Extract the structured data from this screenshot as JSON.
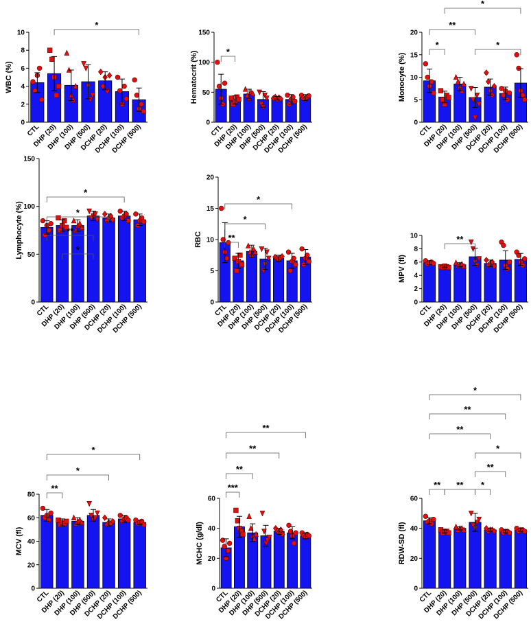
{
  "chart_data": [
    {
      "type": "bar",
      "y_label": "WBC (%)",
      "categories": [
        "CTL",
        "DHP (20)",
        "DHP (100)",
        "DHP (500)",
        "DCHP (20)",
        "DCHP (100)",
        "DCHP (500)"
      ],
      "color": "#1414f0",
      "point_color": "#e01010",
      "values": [
        4.4,
        5.4,
        4.1,
        4.5,
        4.6,
        3.4,
        2.5
      ],
      "errors": [
        1.1,
        1.9,
        1.7,
        1.9,
        1.0,
        1.4,
        1.3
      ],
      "points": [
        [
          4.5,
          3.5,
          5.2,
          6,
          2.5
        ],
        [
          8,
          7,
          5,
          3,
          4
        ],
        [
          7.7,
          5.8,
          3,
          2.5,
          4
        ],
        [
          6.5,
          6,
          4,
          2.5,
          3
        ],
        [
          5.6,
          4,
          5,
          3.5,
          5.2
        ],
        [
          5,
          3.5,
          2,
          4,
          2.6
        ],
        [
          4.7,
          3,
          1.5,
          2,
          1.2
        ]
      ],
      "ylim": [
        0,
        10
      ],
      "yticks": [
        0,
        2,
        4,
        6,
        8,
        10
      ],
      "annotations": [
        {
          "label": "*",
          "pair": [
            1,
            6
          ]
        }
      ]
    },
    {
      "type": "bar",
      "y_label": "Hematocrit (%)",
      "categories": [
        "CTL",
        "DHP (20)",
        "DHP (100)",
        "DHP (500)",
        "DCHP (20)",
        "DCHP (100)",
        "DCHP (500)"
      ],
      "color": "#1414f0",
      "point_color": "#e01010",
      "values": [
        55,
        37,
        47,
        38,
        40,
        38,
        41
      ],
      "errors": [
        25,
        7,
        8,
        13,
        3,
        8,
        5
      ],
      "points": [
        [
          100,
          60,
          40,
          30,
          65
        ],
        [
          40,
          30,
          35,
          42,
          38
        ],
        [
          55,
          45,
          40,
          50,
          48
        ],
        [
          50,
          30,
          25,
          45,
          40
        ],
        [
          40,
          42,
          38,
          41,
          39
        ],
        [
          45,
          30,
          38,
          42,
          35
        ],
        [
          45,
          40,
          38,
          42,
          44
        ]
      ],
      "ylim": [
        0,
        150
      ],
      "yticks": [
        0,
        50,
        100,
        150
      ],
      "annotations": [
        {
          "label": "*",
          "pair": [
            0,
            1
          ]
        }
      ]
    },
    {
      "type": "bar",
      "y_label": "Monocyte (%)",
      "categories": [
        "CTL",
        "DHP (20)",
        "DHP (100)",
        "DHP (500)",
        "DCHP (20)",
        "DCHP (100)",
        "DCHP (500)"
      ],
      "color": "#1414f0",
      "point_color": "#e01010",
      "values": [
        9.2,
        5.6,
        8.5,
        5.5,
        7.8,
        6.4,
        8.7
      ],
      "errors": [
        2.6,
        1.3,
        1.5,
        2.2,
        1.8,
        1.4,
        3.2
      ],
      "points": [
        [
          13,
          10,
          8,
          9,
          6.5
        ],
        [
          7,
          5,
          4,
          6,
          5.5
        ],
        [
          10,
          9,
          8,
          7,
          8.5
        ],
        [
          7.5,
          5,
          1,
          6,
          4
        ],
        [
          11,
          9,
          7,
          6,
          8
        ],
        [
          7.5,
          6,
          7,
          5,
          6.5
        ],
        [
          15,
          12,
          7,
          6,
          5
        ]
      ],
      "ylim": [
        0,
        20
      ],
      "yticks": [
        0,
        5,
        10,
        15,
        20
      ],
      "annotations": [
        {
          "label": "*",
          "pair": [
            0,
            1
          ]
        },
        {
          "label": "**",
          "pair": [
            0,
            3
          ]
        },
        {
          "label": "*",
          "pair": [
            1,
            6
          ]
        },
        {
          "label": "*",
          "pair": [
            3,
            6
          ]
        }
      ]
    },
    {
      "type": "bar",
      "y_label": "Lymphocyte (%)",
      "categories": [
        "CTL",
        "DHP (20)",
        "DHP (100)",
        "DHP (500)",
        "DCHP (20)",
        "DCHP (100)",
        "DCHP (500)"
      ],
      "color": "#1414f0",
      "point_color": "#e01010",
      "values": [
        78,
        80,
        80,
        90,
        88,
        90,
        86
      ],
      "errors": [
        7,
        6,
        6,
        5,
        4,
        5,
        6
      ],
      "points": [
        [
          85,
          70,
          80,
          75,
          82
        ],
        [
          88,
          75,
          80,
          85,
          78
        ],
        [
          85,
          75,
          80,
          82,
          78
        ],
        [
          95,
          88,
          90,
          92,
          86
        ],
        [
          92,
          85,
          88,
          90,
          86
        ],
        [
          95,
          88,
          90,
          92,
          85
        ],
        [
          92,
          80,
          85,
          88,
          84
        ]
      ],
      "ylim": [
        0,
        150
      ],
      "yticks": [
        0,
        50,
        100,
        150
      ],
      "annotations": [
        {
          "label": "*",
          "pair": [
            0,
            5
          ]
        },
        {
          "label": "*",
          "pair": [
            0,
            4
          ]
        },
        {
          "label": "**",
          "pair": [
            0,
            3
          ]
        },
        {
          "label": "*",
          "pair": [
            1,
            3
          ]
        }
      ]
    },
    {
      "type": "bar",
      "y_label": "RBC",
      "categories": [
        "CTL",
        "DHP (20)",
        "DHP (100)",
        "DHP (500)",
        "DCHP (20)",
        "DCHP (100)",
        "DCHP (500)"
      ],
      "color": "#1414f0",
      "point_color": "#e01010",
      "values": [
        9.5,
        6.6,
        8.1,
        6.9,
        7.0,
        6.6,
        7.2
      ],
      "errors": [
        3.2,
        1.2,
        1.0,
        1.7,
        0.5,
        1.2,
        1.2
      ],
      "points": [
        [
          15,
          10,
          8,
          7,
          9.5
        ],
        [
          7,
          5,
          6.5,
          7.5,
          6
        ],
        [
          9,
          8,
          7.5,
          8.5,
          8
        ],
        [
          8.5,
          5,
          6,
          8,
          7
        ],
        [
          7.2,
          7,
          6.8,
          7.1,
          7.3
        ],
        [
          8,
          5,
          6.5,
          7,
          6
        ],
        [
          8.5,
          6,
          7,
          7.5,
          6.5
        ]
      ],
      "ylim": [
        0,
        20
      ],
      "yticks": [
        0,
        5,
        10,
        15,
        20
      ],
      "annotations": [
        {
          "label": "*",
          "pair": [
            0,
            5
          ]
        },
        {
          "label": "*",
          "pair": [
            0,
            3
          ]
        },
        {
          "label": "**",
          "pair": [
            0,
            1
          ]
        }
      ]
    },
    {
      "type": "bar",
      "y_label": "MPV (fl)",
      "categories": [
        "CTL",
        "DHP (20)",
        "DHP (100)",
        "DHP (500)",
        "DCHP (20)",
        "DCHP (100)",
        "DCHP (500)"
      ],
      "color": "#1414f0",
      "point_color": "#e01010",
      "values": [
        5.9,
        5.3,
        5.6,
        6.8,
        5.8,
        6.3,
        6.4
      ],
      "errors": [
        0.3,
        0.1,
        0.3,
        1.3,
        0.5,
        1.4,
        0.9
      ],
      "points": [
        [
          6.2,
          5.7,
          5.9,
          6,
          5.8
        ],
        [
          5.3,
          5.2,
          5.4,
          5.3,
          5.2
        ],
        [
          5.9,
          5.5,
          5.6,
          5.7,
          5.4
        ],
        [
          9,
          8,
          6,
          5.5,
          6.5
        ],
        [
          6.3,
          5.5,
          5.8,
          6,
          5.4
        ],
        [
          9,
          8.5,
          5.5,
          5,
          6
        ],
        [
          7.5,
          7,
          6,
          5.5,
          6.5
        ]
      ],
      "ylim": [
        0,
        10
      ],
      "yticks": [
        0,
        2,
        4,
        6,
        8,
        10
      ],
      "annotations": [
        {
          "label": "**",
          "pair": [
            1,
            3
          ]
        }
      ]
    },
    {
      "type": "bar",
      "y_label": "MCV (fl)",
      "categories": [
        "CTL",
        "DHP (20)",
        "DHP (100)",
        "DHP (500)",
        "DCHP (20)",
        "DCHP (100)",
        "DCHP (500)"
      ],
      "color": "#1414f0",
      "point_color": "#e01010",
      "values": [
        62,
        56,
        57,
        62,
        56,
        59,
        56
      ],
      "errors": [
        5,
        3,
        3,
        5,
        3,
        3,
        2
      ],
      "points": [
        [
          68,
          60,
          62,
          58,
          64
        ],
        [
          58,
          54,
          56,
          55,
          57
        ],
        [
          60,
          55,
          57,
          58,
          56
        ],
        [
          72,
          62,
          58,
          60,
          64
        ],
        [
          60,
          54,
          56,
          55,
          57
        ],
        [
          62,
          57,
          59,
          60,
          58
        ],
        [
          58,
          55,
          56,
          57,
          54
        ]
      ],
      "ylim": [
        0,
        80
      ],
      "yticks": [
        0,
        20,
        40,
        60,
        80
      ],
      "annotations": [
        {
          "label": "*",
          "pair": [
            0,
            6
          ]
        },
        {
          "label": "*",
          "pair": [
            0,
            4
          ]
        },
        {
          "label": "**",
          "pair": [
            0,
            1
          ]
        }
      ]
    },
    {
      "type": "bar",
      "y_label": "MCHC (g/dl)",
      "categories": [
        "CTL",
        "DHP (20)",
        "DHP (100)",
        "DHP (500)",
        "DCHP (20)",
        "DCHP (100)",
        "DCHP (500)"
      ],
      "color": "#1414f0",
      "point_color": "#e01010",
      "values": [
        27,
        41,
        37,
        35,
        38,
        37,
        35
      ],
      "errors": [
        6,
        7,
        6,
        7,
        2,
        4,
        2
      ],
      "points": [
        [
          32,
          28,
          20,
          25,
          30
        ],
        [
          52,
          45,
          40,
          38,
          36
        ],
        [
          48,
          40,
          35,
          33,
          36
        ],
        [
          50,
          38,
          30,
          32,
          34
        ],
        [
          40,
          38,
          37,
          39,
          36
        ],
        [
          42,
          38,
          35,
          30,
          37
        ],
        [
          37,
          35,
          34,
          36,
          35
        ]
      ],
      "ylim": [
        0,
        60
      ],
      "yticks": [
        0,
        20,
        40,
        60
      ],
      "annotations": [
        {
          "label": "**",
          "pair": [
            0,
            6
          ]
        },
        {
          "label": "**",
          "pair": [
            0,
            4
          ]
        },
        {
          "label": "**",
          "pair": [
            0,
            2
          ]
        },
        {
          "label": "***",
          "pair": [
            0,
            1
          ]
        }
      ]
    },
    {
      "type": "bar",
      "y_label": "RDW-SD (fl)",
      "categories": [
        "CTL",
        "DHP (20)",
        "DHP (100)",
        "DHP (500)",
        "DCHP (20)",
        "DCHP (100)",
        "DCHP (500)"
      ],
      "color": "#1414f0",
      "point_color": "#e01010",
      "values": [
        45,
        38,
        40,
        44,
        39,
        38,
        39
      ],
      "errors": [
        2,
        1,
        1,
        6,
        1,
        1,
        1
      ],
      "points": [
        [
          48,
          44,
          45,
          43,
          46
        ],
        [
          39,
          37,
          38,
          38,
          37
        ],
        [
          41,
          39,
          40,
          40,
          39
        ],
        [
          50,
          42,
          40,
          44,
          46
        ],
        [
          40,
          38,
          39,
          39,
          38
        ],
        [
          39,
          37,
          38,
          38,
          37
        ],
        [
          40,
          38,
          39,
          39,
          38
        ]
      ],
      "ylim": [
        0,
        60
      ],
      "yticks": [
        0,
        20,
        40,
        60
      ],
      "annotations": [
        {
          "label": "*",
          "pair": [
            0,
            6
          ]
        },
        {
          "label": "**",
          "pair": [
            0,
            5
          ]
        },
        {
          "label": "**",
          "pair": [
            0,
            4
          ]
        },
        {
          "label": "*",
          "pair": [
            3,
            6
          ]
        },
        {
          "label": "**",
          "pair": [
            3,
            5
          ]
        },
        {
          "label": "*",
          "pair": [
            3,
            4
          ]
        },
        {
          "label": "**",
          "pair": [
            0,
            1
          ]
        },
        {
          "label": "**",
          "pair": [
            1,
            3
          ]
        }
      ]
    }
  ]
}
